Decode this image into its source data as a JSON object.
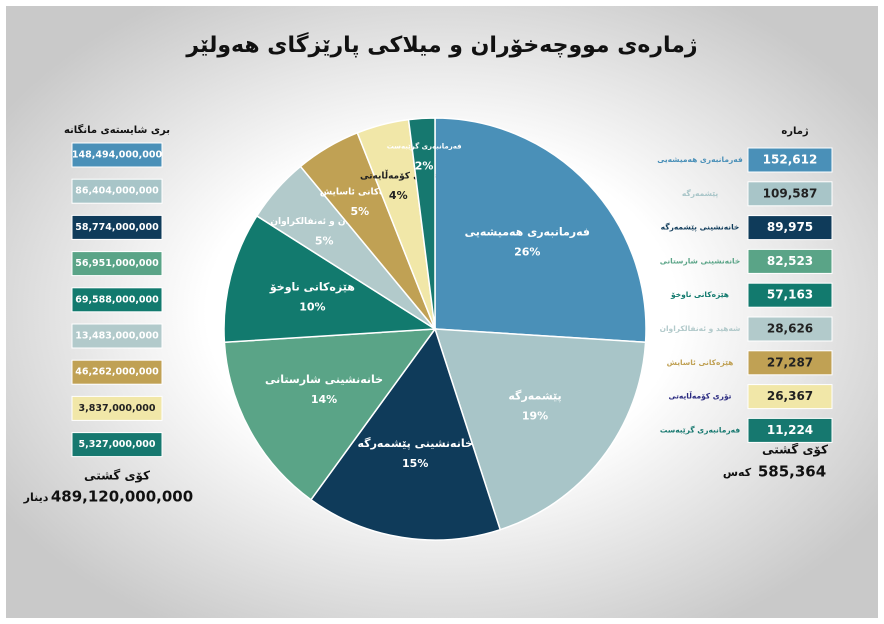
{
  "chart_data": {
    "type": "pie",
    "title": "ژمارەی مووچەخۆران و میلاکی پارێزگای هەولێر",
    "categories": [
      "فەرمانبەری هەمیشەیی",
      "پێشمەرگە",
      "خانەنشینی پێشمەرگە",
      "خانەنشینی شارستانی",
      "هێزەکانی ناوخۆ",
      "شەهیدان و ئەنفالکراوان",
      "هێزەکانی ئاسایش",
      "تۆڕی کۆمەڵایەتی",
      "فەرمانبەری گرێبەست"
    ],
    "values": [
      26,
      19,
      15,
      14,
      10,
      5,
      5,
      4,
      2
    ],
    "value_labels": [
      "26%",
      "19%",
      "15%",
      "14%",
      "10%",
      "5%",
      "5%",
      "4%",
      "2%"
    ],
    "colors": [
      "#4a90b8",
      "#a8c5c8",
      "#0f3b5a",
      "#5aa487",
      "#127a6e",
      "#b2cacb",
      "#c0a154",
      "#f1e7a8",
      "#16786f"
    ]
  },
  "salary_table": {
    "header": "بری شایستەی مانگانە",
    "rows": [
      "148,494,000,000",
      "86,404,000,000",
      "58,774,000,000",
      "56,951,000,000",
      "69,588,000,000",
      "13,483,000,000",
      "46,262,000,000",
      "3,837,000,000",
      "5,327,000,000"
    ],
    "total_label": "کۆی گشتی",
    "total": "489,120,000,000",
    "unit": "دینار"
  },
  "count_table": {
    "header": "ژمارە",
    "rows": [
      [
        "فەرمانبەری هەمیشەیی",
        "152,612"
      ],
      [
        "پێشمەرگە",
        "109,587"
      ],
      [
        "خانەنشینی پێشمەرگە",
        "89,975"
      ],
      [
        "خانەنشینی شارستانی",
        "82,523"
      ],
      [
        "هێزەکانی ناوخۆ",
        "57,163"
      ],
      [
        "شەهید و ئەنفالکراوان",
        "28,626"
      ],
      [
        "هێزەکانی ئاسایش",
        "27,287"
      ],
      [
        "تۆری کۆمەڵایەتی",
        "26,367"
      ],
      [
        "فەرمانبەری گرێبەست",
        "11,224"
      ]
    ],
    "total_label": "کۆی گشتی",
    "total": "585,364",
    "unit": "کەس"
  }
}
